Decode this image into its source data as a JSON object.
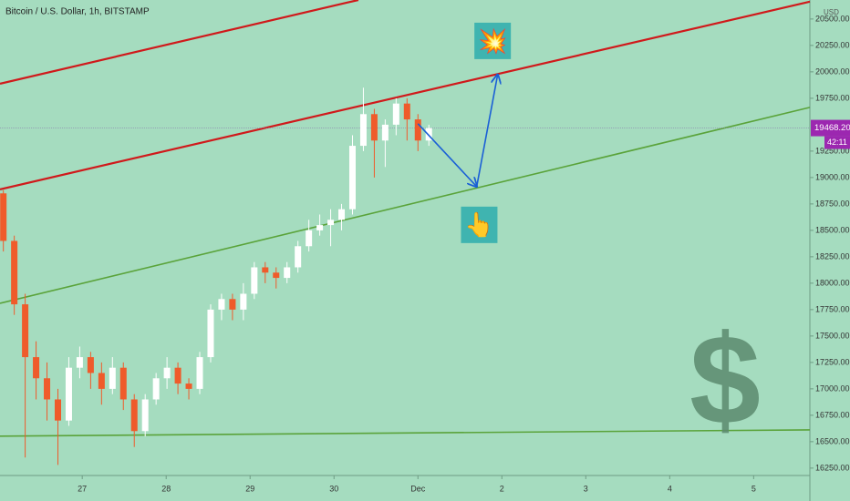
{
  "chart_data": {
    "type": "candlestick",
    "title": "Bitcoin / U.S. Dollar, 1h, BITSTAMP",
    "currency": "USD",
    "x": [
      0.06,
      0.19,
      0.32,
      0.45,
      0.58,
      0.71,
      0.84,
      0.97,
      1.1,
      1.23,
      1.36,
      1.49,
      1.62,
      1.75,
      1.88,
      2.01,
      2.14,
      2.27,
      2.4,
      2.53,
      2.66,
      2.79,
      2.92,
      3.05,
      3.18,
      3.31,
      3.44,
      3.57,
      3.7,
      3.83,
      3.96,
      4.09,
      4.22,
      4.35,
      4.48,
      4.61,
      4.74,
      4.87,
      5.0,
      5.13
    ],
    "open": [
      18850,
      18400,
      17800,
      17300,
      17100,
      16900,
      16700,
      17200,
      17300,
      17150,
      17000,
      17200,
      16900,
      16600,
      16900,
      17100,
      17200,
      17050,
      17000,
      17300,
      17750,
      17850,
      17750,
      17900,
      18150,
      18100,
      18050,
      18150,
      18350,
      18500,
      18550,
      18600,
      18700,
      19300,
      19600,
      19350,
      19500,
      19700,
      19550,
      19350
    ],
    "high": [
      18880,
      18450,
      17900,
      17450,
      17250,
      17000,
      17300,
      17400,
      17350,
      17250,
      17300,
      17250,
      16950,
      16950,
      17150,
      17300,
      17250,
      17100,
      17350,
      17800,
      17900,
      17900,
      18000,
      18200,
      18200,
      18150,
      18200,
      18400,
      18600,
      18650,
      18700,
      18750,
      19400,
      19850,
      19650,
      19550,
      19750,
      19750,
      19600,
      19500
    ],
    "low": [
      18300,
      17700,
      16350,
      16900,
      16700,
      16280,
      16650,
      17100,
      17000,
      16850,
      16950,
      16800,
      16450,
      16550,
      16850,
      17000,
      16950,
      16900,
      16950,
      17250,
      17650,
      17650,
      17650,
      17850,
      18000,
      17950,
      18000,
      18100,
      18300,
      18450,
      18350,
      18500,
      18650,
      19250,
      19000,
      19100,
      19400,
      19350,
      19250,
      19300
    ],
    "close": [
      18400,
      17800,
      17300,
      17100,
      16900,
      16700,
      17200,
      17300,
      17150,
      17000,
      17200,
      16900,
      16600,
      16900,
      17100,
      17200,
      17050,
      17000,
      17300,
      17750,
      17850,
      17750,
      17900,
      18150,
      18100,
      18050,
      18150,
      18350,
      18500,
      18550,
      18600,
      18700,
      19300,
      19600,
      19350,
      19500,
      19700,
      19550,
      19350,
      19468.2
    ],
    "up_color": "#ffffff",
    "down_color": "#ef5b2b",
    "last_price": 19468.2,
    "last_price_label": "19468.20",
    "countdown": "42:11",
    "last_price_color": "#9c27b0",
    "xlim": [
      0.02,
      9.67
    ],
    "ylim": [
      16180,
      20680
    ],
    "xticks": [
      {
        "value": 1,
        "label": "27"
      },
      {
        "value": 2,
        "label": "28"
      },
      {
        "value": 3,
        "label": "29"
      },
      {
        "value": 4,
        "label": "30"
      },
      {
        "value": 5,
        "label": "Dec"
      },
      {
        "value": 6,
        "label": "2"
      },
      {
        "value": 7,
        "label": "3"
      },
      {
        "value": 8,
        "label": "4"
      },
      {
        "value": 9,
        "label": "5"
      }
    ],
    "yticks": [
      {
        "value": 16250,
        "label": "16250.00"
      },
      {
        "value": 16500,
        "label": "16500.00"
      },
      {
        "value": 16750,
        "label": "16750.00"
      },
      {
        "value": 17000,
        "label": "17000.00"
      },
      {
        "value": 17250,
        "label": "17250.00"
      },
      {
        "value": 17500,
        "label": "17500.00"
      },
      {
        "value": 17750,
        "label": "17750.00"
      },
      {
        "value": 18000,
        "label": "18000.00"
      },
      {
        "value": 18250,
        "label": "18250.00"
      },
      {
        "value": 18500,
        "label": "18500.00"
      },
      {
        "value": 18750,
        "label": "18750.00"
      },
      {
        "value": 19000,
        "label": "19000.00"
      },
      {
        "value": 19250,
        "label": "19250.00"
      },
      {
        "value": 19750,
        "label": "19750.00"
      },
      {
        "value": 20000,
        "label": "20000.00"
      },
      {
        "value": 20250,
        "label": "20250.00"
      },
      {
        "value": 20500,
        "label": "20500.00"
      }
    ],
    "trendlines": [
      {
        "color": "#d0191b",
        "x": [
          0.02,
          4.29
        ],
        "y": [
          19888,
          20680
        ]
      },
      {
        "color": "#d0191b",
        "x": [
          0.02,
          9.67
        ],
        "y": [
          18888,
          20664
        ]
      },
      {
        "color": "#5aa33a",
        "x": [
          0.02,
          9.67
        ],
        "y": [
          17810,
          19664
        ]
      },
      {
        "color": "#5aa33a",
        "x": [
          0.02,
          9.67
        ],
        "y": [
          16552,
          16612
        ]
      }
    ],
    "arrows": {
      "color": "#1a5fd6",
      "x": [
        5.0,
        5.7,
        5.95
      ],
      "y": [
        19509,
        18914,
        19974
      ]
    },
    "annotations": [
      {
        "text": "💥",
        "x": 5.89,
        "y": 20293
      },
      {
        "text": "👆",
        "x": 5.73,
        "y": 18552
      },
      {
        "text": "$",
        "x": 8.66,
        "y": 16990
      }
    ]
  }
}
